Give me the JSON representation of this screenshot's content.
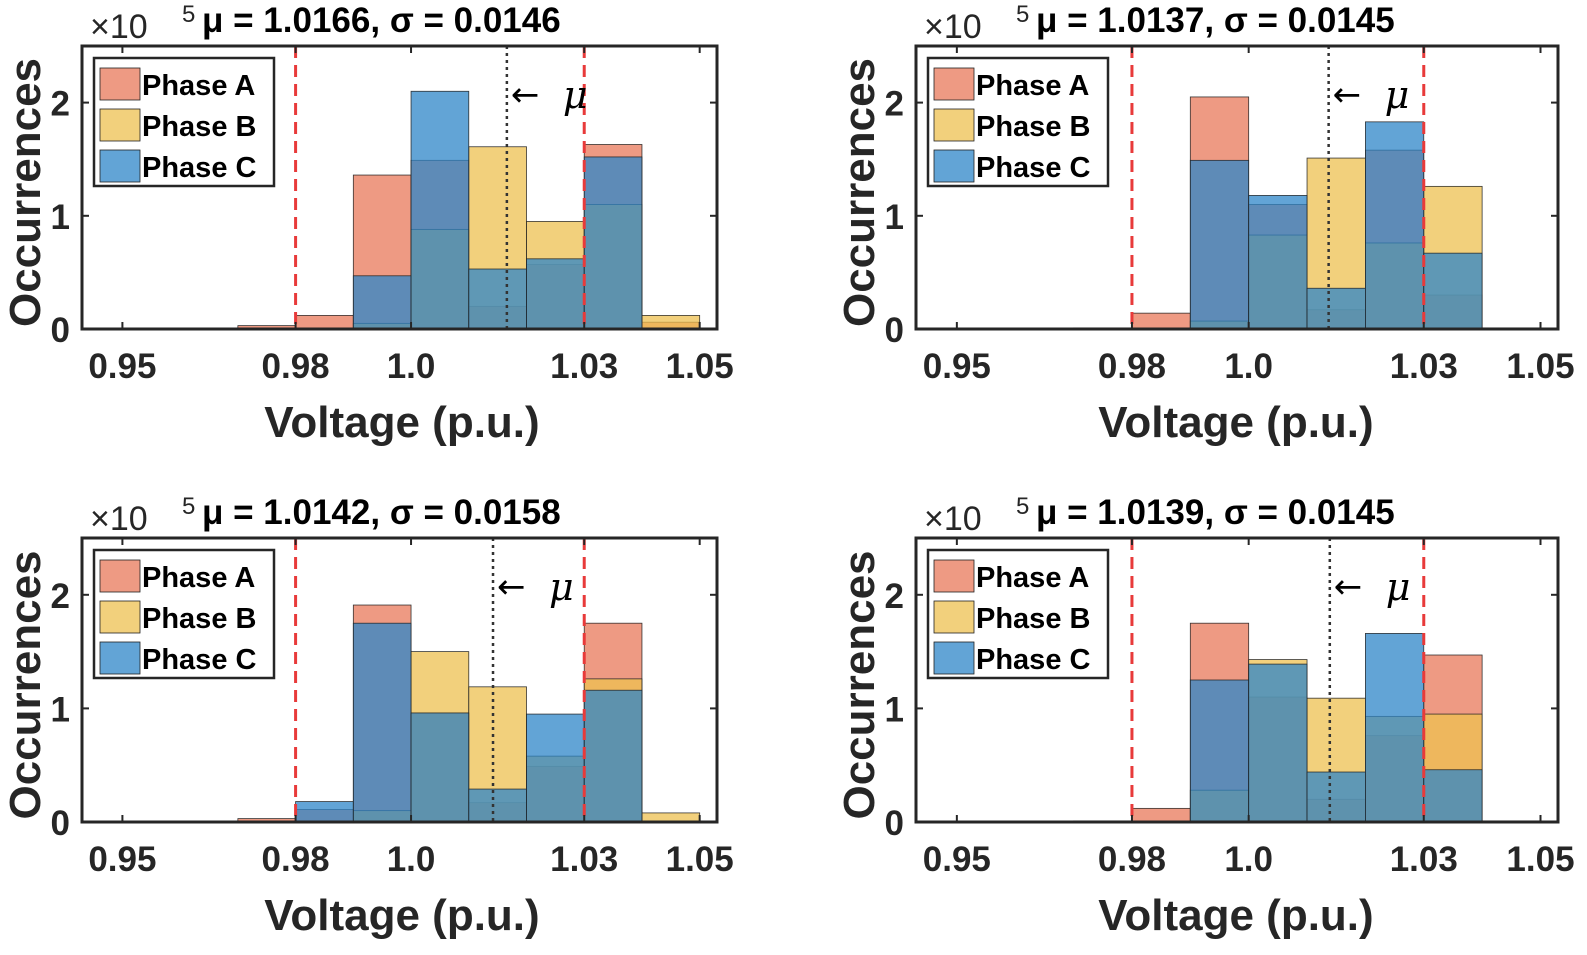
{
  "colors": {
    "phase_a": "#E8785A",
    "phase_b": "#EDC050",
    "phase_c": "#2E86C8",
    "limit_line": "#E83A3A",
    "mean_line": "#333333",
    "axis": "#262626"
  },
  "shared": {
    "xlabel": "Voltage (p.u.)",
    "ylabel": "Occurrences",
    "exponent_prefix": "×10",
    "exponent_power": "5",
    "mu_arrow": "←",
    "mu_symbol": "μ",
    "x_ticks": [
      0.95,
      0.98,
      1.0,
      1.03,
      1.05
    ],
    "x_tick_labels": [
      "0.95",
      "0.98",
      "1.0",
      "1.03",
      "1.05"
    ],
    "y_ticks": [
      0,
      1,
      2
    ],
    "y_tick_labels": [
      "0",
      "1",
      "2"
    ],
    "xlim": [
      0.943,
      1.053
    ],
    "ylim": [
      0,
      2.5
    ],
    "limit_lines": [
      0.98,
      1.03
    ],
    "legend": [
      "Phase A",
      "Phase B",
      "Phase C"
    ],
    "bin_edges": [
      0.97,
      0.98,
      0.99,
      1.0,
      1.01,
      1.02,
      1.03,
      1.04,
      1.05
    ]
  },
  "chart_data": [
    {
      "type": "bar",
      "title_mu": "μ = 1.0166, ",
      "title_sigma": "σ = 0.0146",
      "title": "μ = 1.0166, σ = 0.0146",
      "mean": 1.0166,
      "sigma": 0.0146,
      "series": [
        {
          "name": "Phase A",
          "values": [
            0.03,
            0.12,
            1.36,
            1.49,
            0.2,
            0.57,
            1.63,
            0.06
          ]
        },
        {
          "name": "Phase B",
          "values": [
            0.0,
            0.0,
            0.05,
            0.88,
            1.61,
            0.95,
            1.1,
            0.12
          ]
        },
        {
          "name": "Phase C",
          "values": [
            0.0,
            0.0,
            0.47,
            2.1,
            0.53,
            0.62,
            1.52,
            0.0
          ]
        }
      ]
    },
    {
      "type": "bar",
      "title_mu": "μ = 1.0137, ",
      "title_sigma": "σ = 0.0145",
      "title": "μ = 1.0137, σ = 0.0145",
      "mean": 1.0137,
      "sigma": 0.0145,
      "series": [
        {
          "name": "Phase A",
          "values": [
            0.01,
            0.14,
            2.05,
            1.1,
            0.17,
            1.58,
            0.3,
            0.01
          ]
        },
        {
          "name": "Phase B",
          "values": [
            0.0,
            0.0,
            0.07,
            0.83,
            1.51,
            0.76,
            1.26,
            0.0
          ]
        },
        {
          "name": "Phase C",
          "values": [
            0.0,
            0.0,
            1.49,
            1.18,
            0.36,
            1.83,
            0.67,
            0.0
          ]
        }
      ]
    },
    {
      "type": "bar",
      "title_mu": "μ = 1.0142, ",
      "title_sigma": "σ = 0.0158",
      "title": "μ = 1.0142, σ = 0.0158",
      "mean": 1.0142,
      "sigma": 0.0158,
      "series": [
        {
          "name": "Phase A",
          "values": [
            0.03,
            0.11,
            1.91,
            0.96,
            0.17,
            0.49,
            1.75,
            0.0
          ]
        },
        {
          "name": "Phase B",
          "values": [
            0.0,
            0.0,
            0.1,
            1.5,
            1.19,
            0.58,
            1.26,
            0.08
          ]
        },
        {
          "name": "Phase C",
          "values": [
            0.0,
            0.18,
            1.75,
            0.96,
            0.29,
            0.95,
            1.16,
            0.0
          ]
        }
      ]
    },
    {
      "type": "bar",
      "title_mu": "μ = 1.0139, ",
      "title_sigma": "σ = 0.0145",
      "title": "μ = 1.0139, σ = 0.0145",
      "mean": 1.0139,
      "sigma": 0.0145,
      "series": [
        {
          "name": "Phase A",
          "values": [
            0.01,
            0.12,
            1.75,
            1.1,
            0.2,
            0.76,
            1.47,
            0.01
          ]
        },
        {
          "name": "Phase B",
          "values": [
            0.0,
            0.0,
            0.28,
            1.43,
            1.09,
            0.93,
            0.95,
            0.0
          ]
        },
        {
          "name": "Phase C",
          "values": [
            0.0,
            0.0,
            1.25,
            1.39,
            0.44,
            1.66,
            0.46,
            0.0
          ]
        }
      ]
    }
  ]
}
